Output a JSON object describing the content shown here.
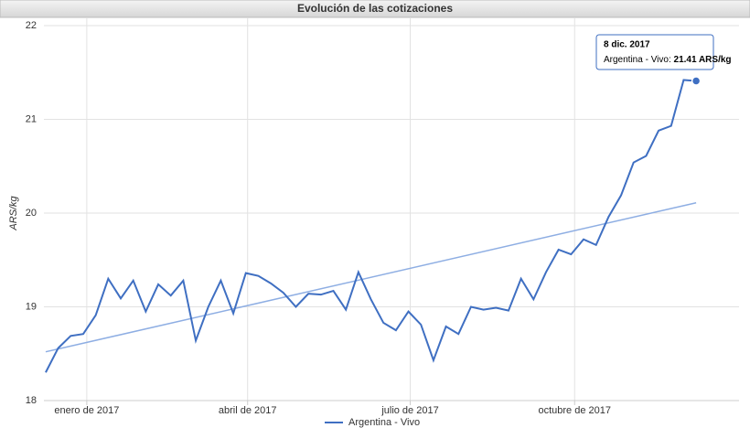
{
  "chart_data": {
    "type": "line",
    "title": "Evolución de las cotizaciones",
    "y_label": "ARS/kg",
    "x": [
      "2016-12-09",
      "2016-12-16",
      "2016-12-23",
      "2016-12-30",
      "2017-01-06",
      "2017-01-13",
      "2017-01-20",
      "2017-01-27",
      "2017-02-03",
      "2017-02-10",
      "2017-02-17",
      "2017-02-24",
      "2017-03-03",
      "2017-03-10",
      "2017-03-17",
      "2017-03-24",
      "2017-03-31",
      "2017-04-07",
      "2017-04-14",
      "2017-04-21",
      "2017-04-28",
      "2017-05-05",
      "2017-05-12",
      "2017-05-19",
      "2017-05-26",
      "2017-06-02",
      "2017-06-09",
      "2017-06-16",
      "2017-06-23",
      "2017-06-30",
      "2017-07-07",
      "2017-07-14",
      "2017-07-21",
      "2017-07-28",
      "2017-08-04",
      "2017-08-11",
      "2017-08-18",
      "2017-08-25",
      "2017-09-01",
      "2017-09-08",
      "2017-09-15",
      "2017-09-22",
      "2017-09-29",
      "2017-10-06",
      "2017-10-13",
      "2017-10-20",
      "2017-10-27",
      "2017-11-03",
      "2017-11-10",
      "2017-11-17",
      "2017-11-24",
      "2017-12-01",
      "2017-12-08"
    ],
    "series": [
      {
        "name": "Argentina - Vivo",
        "color": "#3f6fc2",
        "values": [
          18.3,
          18.56,
          18.69,
          18.71,
          18.91,
          19.3,
          19.09,
          19.28,
          18.95,
          19.24,
          19.12,
          19.28,
          18.64,
          19.0,
          19.28,
          18.93,
          19.36,
          19.33,
          19.25,
          19.15,
          19.0,
          19.14,
          19.13,
          19.17,
          18.97,
          19.37,
          19.08,
          18.83,
          18.75,
          18.95,
          18.81,
          18.43,
          18.79,
          18.71,
          19.0,
          18.97,
          18.99,
          18.96,
          19.3,
          19.08,
          19.37,
          19.61,
          19.56,
          19.72,
          19.66,
          19.96,
          20.19,
          20.54,
          20.61,
          20.88,
          20.93,
          21.42,
          21.41
        ]
      }
    ],
    "trendline": {
      "color": "#8eaee3",
      "x": [
        "2016-12-09",
        "2017-12-08"
      ],
      "values": [
        18.52,
        20.11
      ]
    },
    "xlim": [
      "2016-12-08",
      "2018-01-01"
    ],
    "xticks": [
      {
        "value": "2017-01-01",
        "label": "enero de 2017"
      },
      {
        "value": "2017-04-01",
        "label": "abril de 2017"
      },
      {
        "value": "2017-07-01",
        "label": "julio de 2017"
      },
      {
        "value": "2017-10-01",
        "label": "octubre de 2017"
      }
    ],
    "ylim": [
      18,
      22
    ],
    "yticks": [
      18,
      19,
      20,
      21,
      22
    ],
    "grid": true,
    "legend": "bottom",
    "tooltip": {
      "date": "8 dic. 2017",
      "label": "Argentina - Vivo:",
      "value": "21.41 ARS/kg",
      "value_number": 21.41
    }
  }
}
